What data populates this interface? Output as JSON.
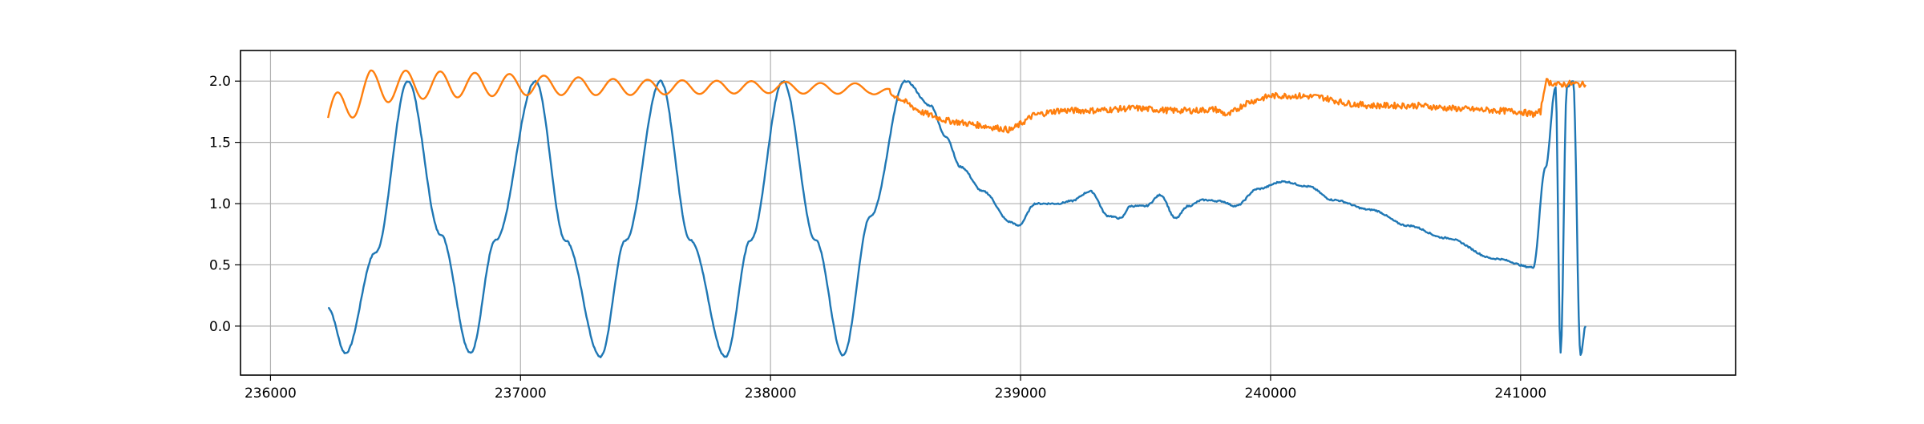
{
  "chart_data": {
    "type": "line",
    "title": "",
    "xlabel": "",
    "ylabel": "",
    "xlim": [
      235880,
      241860
    ],
    "ylim": [
      -0.4,
      2.25
    ],
    "grid": true,
    "x_ticks": [
      236000,
      237000,
      238000,
      239000,
      240000,
      241000
    ],
    "x_tick_labels": [
      "236000",
      "237000",
      "238000",
      "239000",
      "240000",
      "241000"
    ],
    "y_ticks": [
      0.0,
      0.5,
      1.0,
      1.5,
      2.0
    ],
    "y_tick_labels": [
      "0.0",
      "0.5",
      "1.0",
      "1.5",
      "2.0"
    ],
    "colors": {
      "series1": "#1f77b4",
      "series2": "#ff7f0e"
    },
    "series": [
      {
        "color": "#1f77b4",
        "x": [
          236230,
          236300,
          236420,
          236550,
          236680,
          236800,
          236900,
          237060,
          237180,
          237320,
          237420,
          237560,
          237680,
          237820,
          237920,
          238050,
          238180,
          238290,
          238400,
          238540,
          238640,
          238700,
          238760,
          238850,
          238960,
          238990,
          239060,
          239150,
          239200,
          239280,
          239350,
          239400,
          239440,
          239500,
          239560,
          239620,
          239670,
          239730,
          239800,
          239860,
          239950,
          240050,
          240150,
          240250,
          240400,
          240550,
          240700,
          240900,
          241050,
          241100,
          241140,
          241160,
          241185,
          241210,
          241240,
          241260
        ],
        "y": [
          0.15,
          -0.22,
          0.6,
          2.0,
          0.75,
          -0.22,
          0.7,
          2.0,
          0.7,
          -0.25,
          0.7,
          2.0,
          0.7,
          -0.25,
          0.7,
          2.0,
          0.7,
          -0.24,
          0.9,
          2.0,
          1.8,
          1.55,
          1.3,
          1.1,
          0.85,
          0.82,
          1.0,
          1.0,
          1.02,
          1.1,
          0.9,
          0.88,
          0.98,
          0.98,
          1.07,
          0.88,
          0.98,
          1.03,
          1.02,
          0.98,
          1.12,
          1.18,
          1.14,
          1.03,
          0.95,
          0.82,
          0.72,
          0.55,
          0.48,
          1.3,
          1.95,
          -0.22,
          1.95,
          2.0,
          -0.24,
          0.0
        ]
      },
      {
        "color": "#ff7f0e",
        "x": [
          236230,
          236400,
          236600,
          236800,
          237000,
          237200,
          237400,
          237600,
          237800,
          238000,
          238200,
          238400,
          238500,
          238600,
          238700,
          238800,
          238900,
          238960,
          239000,
          239050,
          239150,
          239300,
          239450,
          239600,
          239700,
          239780,
          239830,
          239900,
          240000,
          240100,
          240200,
          240300,
          240400,
          240500,
          240600,
          240700,
          240800,
          240900,
          241000,
          241050,
          241080,
          241100,
          241150,
          241200,
          241260
        ],
        "y": [
          1.7,
          1.95,
          1.97,
          1.97,
          1.97,
          1.96,
          1.95,
          1.95,
          1.95,
          1.95,
          1.94,
          1.94,
          1.88,
          1.75,
          1.68,
          1.65,
          1.62,
          1.6,
          1.65,
          1.72,
          1.76,
          1.76,
          1.78,
          1.76,
          1.76,
          1.77,
          1.72,
          1.82,
          1.88,
          1.88,
          1.87,
          1.82,
          1.8,
          1.8,
          1.8,
          1.78,
          1.77,
          1.76,
          1.75,
          1.73,
          1.75,
          2.0,
          1.97,
          1.98,
          1.97
        ]
      }
    ]
  }
}
